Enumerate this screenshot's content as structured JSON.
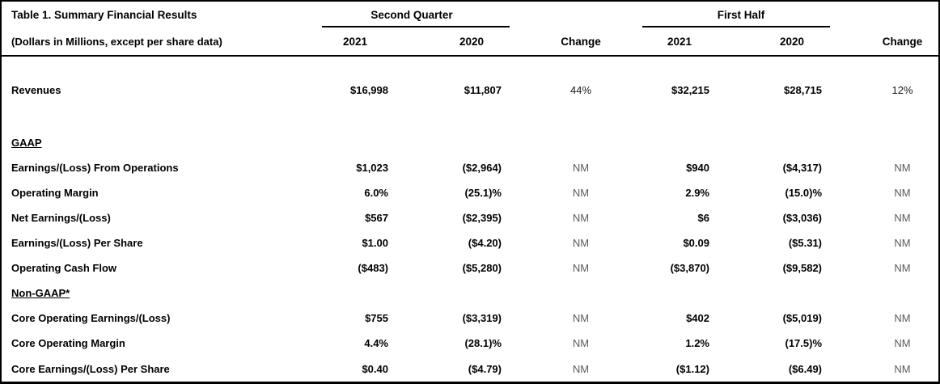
{
  "header": {
    "title": "Table 1. Summary Financial Results",
    "subtitle": "(Dollars in Millions, except per share data)",
    "second_quarter": "Second Quarter",
    "first_half": "First Half",
    "year_2021": "2021",
    "year_2020": "2020",
    "change": "Change"
  },
  "colors": {
    "text": "#000000",
    "change_nm": "#5a5a5a",
    "change_pct": "#1a1a1a",
    "border": "#000000",
    "background": "#ffffff"
  },
  "rows": [
    {
      "label": "Revenues",
      "type": "data",
      "values": [
        "$16,998",
        "$11,807",
        "44%",
        "$32,215",
        "$28,715",
        "12%"
      ]
    },
    {
      "label": "GAAP",
      "type": "section"
    },
    {
      "label": "Earnings/(Loss) From Operations",
      "type": "data",
      "values": [
        "$1,023",
        "($2,964)",
        "NM",
        "$940",
        "($4,317)",
        "NM"
      ]
    },
    {
      "label": "Operating Margin",
      "type": "data",
      "values": [
        "6.0%",
        "(25.1)%",
        "NM",
        "2.9%",
        "(15.0)%",
        "NM"
      ]
    },
    {
      "label": "Net Earnings/(Loss)",
      "type": "data",
      "values": [
        "$567",
        "($2,395)",
        "NM",
        "$6",
        "($3,036)",
        "NM"
      ]
    },
    {
      "label": "Earnings/(Loss) Per Share",
      "type": "data",
      "values": [
        "$1.00",
        "($4.20)",
        "NM",
        "$0.09",
        "($5.31)",
        "NM"
      ]
    },
    {
      "label": "Operating Cash Flow",
      "type": "data",
      "values": [
        "($483)",
        "($5,280)",
        "NM",
        "($3,870)",
        "($9,582)",
        "NM"
      ]
    },
    {
      "label": "Non-GAAP*",
      "type": "section"
    },
    {
      "label": "Core Operating Earnings/(Loss)",
      "type": "data",
      "values": [
        "$755",
        "($3,319)",
        "NM",
        "$402",
        "($5,019)",
        "NM"
      ]
    },
    {
      "label": "Core Operating Margin",
      "type": "data",
      "values": [
        "4.4%",
        "(28.1)%",
        "NM",
        "1.2%",
        "(17.5)%",
        "NM"
      ]
    },
    {
      "label": "Core Earnings/(Loss) Per Share",
      "type": "data",
      "values": [
        "$0.40",
        "($4.79)",
        "NM",
        "($1.12)",
        "($6.49)",
        "NM"
      ]
    }
  ]
}
